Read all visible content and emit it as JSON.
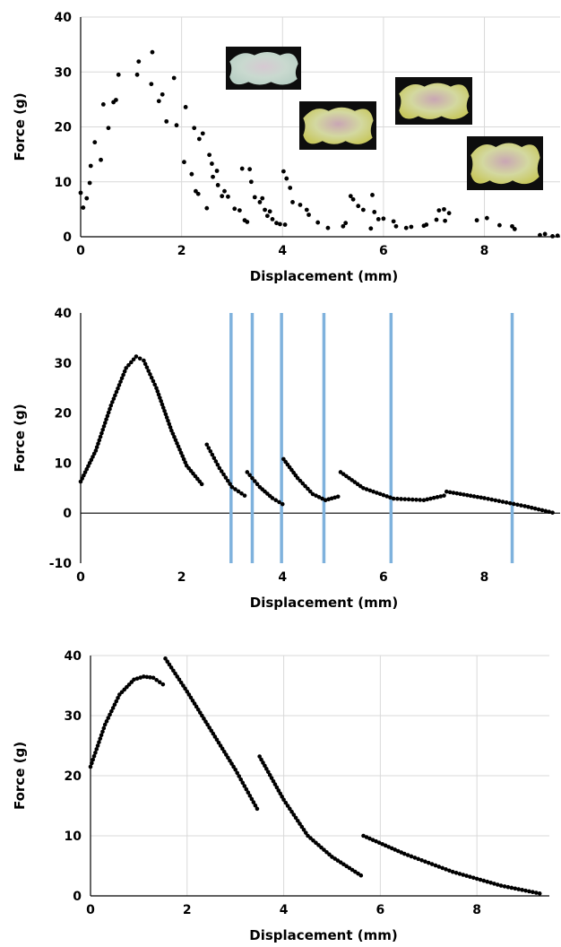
{
  "chart_data": [
    {
      "type": "scatter",
      "xlabel": "Displacement (mm)",
      "ylabel": "Force (g)",
      "xlim": [
        0,
        9.5
      ],
      "ylim": [
        0,
        40
      ],
      "xticks": [
        "0",
        "2",
        "4",
        "6",
        "8"
      ],
      "yticks": [
        "0",
        "10",
        "20",
        "30",
        "40"
      ],
      "grid": true,
      "series": [
        {
          "points": [
            [
              0.0,
              8.0
            ],
            [
              0.05,
              5.3
            ],
            [
              0.12,
              7.0
            ],
            [
              0.18,
              9.8
            ],
            [
              0.2,
              12.9
            ],
            [
              0.28,
              17.2
            ],
            [
              0.4,
              14.0
            ],
            [
              0.45,
              24.1
            ],
            [
              0.55,
              19.8
            ],
            [
              0.65,
              24.5
            ],
            [
              0.7,
              24.9
            ],
            [
              0.75,
              29.5
            ],
            [
              1.12,
              29.5
            ],
            [
              1.15,
              31.9
            ],
            [
              1.4,
              27.8
            ],
            [
              1.42,
              33.6
            ],
            [
              1.55,
              24.7
            ],
            [
              1.62,
              25.9
            ],
            [
              1.7,
              21.0
            ],
            [
              1.85,
              28.9
            ],
            [
              1.9,
              20.3
            ],
            [
              2.05,
              13.6
            ],
            [
              2.08,
              23.6
            ],
            [
              2.2,
              11.4
            ],
            [
              2.25,
              19.8
            ],
            [
              2.28,
              8.3
            ],
            [
              2.33,
              7.8
            ],
            [
              2.35,
              17.8
            ],
            [
              2.42,
              18.8
            ],
            [
              2.5,
              5.2
            ],
            [
              2.55,
              14.9
            ],
            [
              2.6,
              13.3
            ],
            [
              2.62,
              10.9
            ],
            [
              2.7,
              12.0
            ],
            [
              2.72,
              9.4
            ],
            [
              2.8,
              7.4
            ],
            [
              2.85,
              8.3
            ],
            [
              2.92,
              7.3
            ],
            [
              3.05,
              5.1
            ],
            [
              3.15,
              4.8
            ],
            [
              3.2,
              12.4
            ],
            [
              3.25,
              3.0
            ],
            [
              3.3,
              2.7
            ],
            [
              3.35,
              12.3
            ],
            [
              3.38,
              10.0
            ],
            [
              3.45,
              7.2
            ],
            [
              3.55,
              6.3
            ],
            [
              3.6,
              7.0
            ],
            [
              3.65,
              4.9
            ],
            [
              3.7,
              3.8
            ],
            [
              3.75,
              4.6
            ],
            [
              3.8,
              3.2
            ],
            [
              3.88,
              2.5
            ],
            [
              3.95,
              2.3
            ],
            [
              4.02,
              11.9
            ],
            [
              4.05,
              2.2
            ],
            [
              4.08,
              10.6
            ],
            [
              4.15,
              8.9
            ],
            [
              4.2,
              6.3
            ],
            [
              4.35,
              5.8
            ],
            [
              4.48,
              4.9
            ],
            [
              4.52,
              4.0
            ],
            [
              4.7,
              2.6
            ],
            [
              4.9,
              1.6
            ],
            [
              5.2,
              1.9
            ],
            [
              5.25,
              2.5
            ],
            [
              5.35,
              7.4
            ],
            [
              5.4,
              6.8
            ],
            [
              5.5,
              5.6
            ],
            [
              5.6,
              4.9
            ],
            [
              5.75,
              1.5
            ],
            [
              5.78,
              7.6
            ],
            [
              5.82,
              4.5
            ],
            [
              5.9,
              3.2
            ],
            [
              6.0,
              3.3
            ],
            [
              6.2,
              2.8
            ],
            [
              6.25,
              1.9
            ],
            [
              6.45,
              1.6
            ],
            [
              6.55,
              1.8
            ],
            [
              6.8,
              2.0
            ],
            [
              6.85,
              2.2
            ],
            [
              7.05,
              3.1
            ],
            [
              7.1,
              4.8
            ],
            [
              7.2,
              5.0
            ],
            [
              7.22,
              2.9
            ],
            [
              7.3,
              4.3
            ],
            [
              7.85,
              3.0
            ],
            [
              8.05,
              3.4
            ],
            [
              8.3,
              2.1
            ],
            [
              8.55,
              1.9
            ],
            [
              8.6,
              1.4
            ],
            [
              9.1,
              0.3
            ],
            [
              9.2,
              0.5
            ],
            [
              9.35,
              0.1
            ],
            [
              9.45,
              0.2
            ]
          ]
        }
      ],
      "inset_images": 4
    },
    {
      "type": "line",
      "xlabel": "Displacement (mm)",
      "ylabel": "Force (g)",
      "xlim": [
        0,
        9.5
      ],
      "ylim": [
        -10,
        40
      ],
      "xticks": [
        "0",
        "2",
        "4",
        "6",
        "8"
      ],
      "yticks": [
        "-10",
        "0",
        "10",
        "20",
        "30",
        "40"
      ],
      "grid": false,
      "vertical_lines": [
        2.98,
        3.4,
        3.98,
        4.82,
        6.15,
        8.55
      ],
      "vertical_line_color": "#7fb2dd",
      "series": [
        {
          "points": [
            [
              0.0,
              6.3
            ],
            [
              0.3,
              12.5
            ],
            [
              0.6,
              21.5
            ],
            [
              0.9,
              29.0
            ],
            [
              1.1,
              31.3
            ],
            [
              1.25,
              30.5
            ],
            [
              1.5,
              25.0
            ],
            [
              1.8,
              16.5
            ],
            [
              2.1,
              9.5
            ],
            [
              2.4,
              5.8
            ]
          ]
        },
        {
          "points": [
            [
              2.5,
              13.7
            ],
            [
              2.75,
              9.0
            ],
            [
              3.0,
              5.2
            ],
            [
              3.25,
              3.5
            ]
          ]
        },
        {
          "points": [
            [
              3.3,
              8.2
            ],
            [
              3.55,
              5.2
            ],
            [
              3.8,
              3.0
            ],
            [
              4.0,
              1.8
            ]
          ]
        },
        {
          "points": [
            [
              4.02,
              10.8
            ],
            [
              4.3,
              7.0
            ],
            [
              4.6,
              3.8
            ],
            [
              4.85,
              2.6
            ],
            [
              5.1,
              3.3
            ]
          ]
        },
        {
          "points": [
            [
              5.15,
              8.2
            ],
            [
              5.6,
              5.0
            ],
            [
              6.2,
              2.9
            ],
            [
              6.8,
              2.6
            ],
            [
              7.2,
              3.5
            ]
          ]
        },
        {
          "points": [
            [
              7.25,
              4.3
            ],
            [
              8.0,
              3.0
            ],
            [
              8.8,
              1.4
            ],
            [
              9.35,
              0.1
            ]
          ]
        }
      ]
    },
    {
      "type": "line",
      "xlabel": "Displacement (mm)",
      "ylabel": "Force (g)",
      "xlim": [
        0,
        9.5
      ],
      "ylim": [
        0,
        40
      ],
      "xticks": [
        "0",
        "2",
        "4",
        "6",
        "8"
      ],
      "yticks": [
        "0",
        "10",
        "20",
        "30",
        "40"
      ],
      "grid": true,
      "series": [
        {
          "points": [
            [
              0.0,
              21.5
            ],
            [
              0.3,
              28.5
            ],
            [
              0.6,
              33.5
            ],
            [
              0.9,
              36.0
            ],
            [
              1.1,
              36.5
            ],
            [
              1.3,
              36.3
            ],
            [
              1.5,
              35.2
            ]
          ]
        },
        {
          "points": [
            [
              1.55,
              39.5
            ],
            [
              2.0,
              34.0
            ],
            [
              2.5,
              27.5
            ],
            [
              3.0,
              21.0
            ],
            [
              3.45,
              14.5
            ]
          ]
        },
        {
          "points": [
            [
              3.5,
              23.2
            ],
            [
              4.0,
              16.0
            ],
            [
              4.5,
              10.0
            ],
            [
              5.0,
              6.5
            ],
            [
              5.6,
              3.4
            ]
          ]
        },
        {
          "points": [
            [
              5.65,
              10.0
            ],
            [
              6.5,
              7.0
            ],
            [
              7.5,
              4.0
            ],
            [
              8.5,
              1.7
            ],
            [
              9.3,
              0.4
            ]
          ]
        }
      ]
    }
  ]
}
